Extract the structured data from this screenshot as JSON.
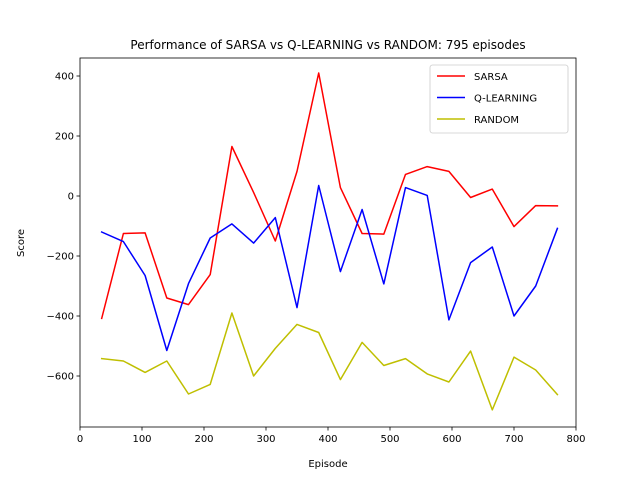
{
  "chart_data": {
    "type": "line",
    "title": "Performance of SARSA vs Q-LEARNING vs RANDOM: 795 episodes",
    "xlabel": "Episode",
    "ylabel": "Score",
    "xlim": [
      0,
      800
    ],
    "ylim": [
      -770,
      460
    ],
    "xticks": [
      0,
      100,
      200,
      300,
      400,
      500,
      600,
      700,
      800
    ],
    "yticks": [
      -600,
      -400,
      -200,
      0,
      200,
      400
    ],
    "grid": false,
    "legend_position": "top-right",
    "x": [
      35,
      70,
      105,
      140,
      175,
      210,
      245,
      280,
      315,
      350,
      385,
      420,
      455,
      490,
      525,
      560,
      595,
      630,
      665,
      700,
      735,
      770
    ],
    "series": [
      {
        "name": "SARSA",
        "color": "#ff0000",
        "values": [
          -408,
          -125,
          -123,
          -340,
          -362,
          -262,
          165,
          12,
          -150,
          82,
          410,
          28,
          -125,
          -127,
          72,
          98,
          82,
          -5,
          23,
          -102,
          -32,
          -33
        ]
      },
      {
        "name": "Q-LEARNING",
        "color": "#0000ff",
        "values": [
          -120,
          -152,
          -265,
          -515,
          -292,
          -140,
          -93,
          -157,
          -72,
          -372,
          35,
          -252,
          -45,
          -293,
          28,
          2,
          -413,
          -222,
          -170,
          -400,
          -300,
          -108
        ]
      },
      {
        "name": "RANDOM",
        "color": "#bfbf00",
        "values": [
          -542,
          -550,
          -588,
          -550,
          -660,
          -628,
          -390,
          -600,
          -508,
          -428,
          -455,
          -612,
          -488,
          -565,
          -542,
          -593,
          -620,
          -517,
          -713,
          -537,
          -580,
          -662
        ]
      }
    ]
  }
}
